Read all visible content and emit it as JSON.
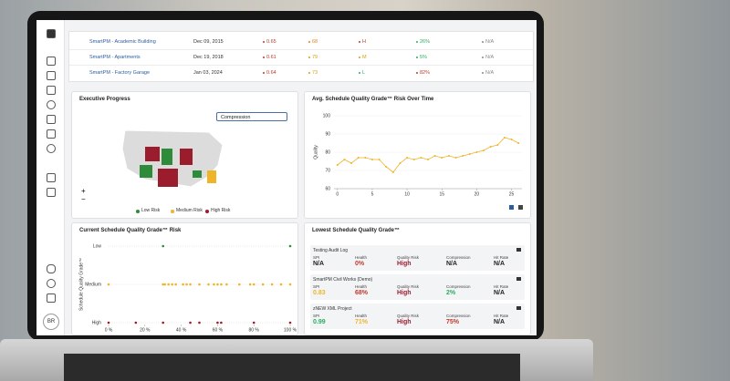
{
  "project_table": {
    "rows": [
      {
        "cells": [
          "SmartPM - Academic Building",
          "Dec 09, 2015",
          "0.65",
          "68",
          "H",
          "26%",
          "N/A"
        ],
        "colors": [
          "#2a5d9f",
          "#333333",
          "#c0392b",
          "#e67e22",
          "#c0392b",
          "#27ae60",
          "#888888"
        ]
      },
      {
        "cells": [
          "SmartPM - Apartments",
          "Dec 19, 2018",
          "0.61",
          "79",
          "M",
          "5%",
          "N/A"
        ],
        "colors": [
          "#2a5d9f",
          "#333333",
          "#c0392b",
          "#d4a017",
          "#d4a017",
          "#27ae60",
          "#888888"
        ]
      },
      {
        "cells": [
          "SmartPM - Factory Garage",
          "Jan 03, 2024",
          "0.64",
          "73",
          "L",
          "82%",
          "N/A"
        ],
        "colors": [
          "#2a5d9f",
          "#333333",
          "#c0392b",
          "#d4a017",
          "#27ae60",
          "#c0392b",
          "#888888"
        ]
      }
    ]
  },
  "executive_progress": {
    "title": "Executive Progress",
    "dropdown": "Compression",
    "zoom": [
      "+",
      "−"
    ],
    "legend": [
      {
        "name": "Low Risk",
        "color": "#2e8b3a"
      },
      {
        "name": "Medium Risk",
        "color": "#f0b429"
      },
      {
        "name": "High Risk",
        "color": "#9b1c2c"
      }
    ]
  },
  "risk_over_time": {
    "title": "Avg. Schedule Quality Grade™ Risk Over Time",
    "y_label": "Quality",
    "x": [
      0,
      1,
      2,
      3,
      4,
      5,
      6,
      7,
      8,
      9,
      10,
      11,
      12,
      13,
      14,
      15,
      16,
      17,
      18,
      19,
      20,
      21,
      22,
      23,
      24,
      25,
      26
    ],
    "values": [
      73,
      76,
      74,
      77,
      77,
      76,
      76,
      72,
      69,
      74,
      77,
      76,
      77,
      76,
      78,
      77,
      78,
      77,
      78,
      79,
      80,
      81,
      83,
      84,
      88,
      87,
      85
    ],
    "color": "#f0b429",
    "xlim": [
      -0.5,
      26.5
    ],
    "xticks": [
      0,
      5,
      10,
      15,
      20,
      25
    ],
    "ylim": [
      60,
      100
    ],
    "yticks": [
      60,
      70,
      80,
      90,
      100
    ]
  },
  "current_risk": {
    "title": "Current Schedule Quality Grade™ Risk",
    "y_label": "Schedule Quality Grade™",
    "categories": [
      "Low",
      "Medium",
      "High"
    ],
    "groups": [
      {
        "values": [
          30,
          100
        ],
        "color": "#2e8b3a"
      },
      {
        "values": [
          0,
          30,
          31,
          33,
          35,
          37,
          41,
          43,
          45,
          50,
          55,
          58,
          60,
          62,
          65,
          72,
          78,
          80,
          85,
          90,
          95,
          100
        ],
        "color": "#f0b429"
      },
      {
        "values": [
          0,
          15,
          30,
          45,
          50,
          60,
          62,
          80,
          100
        ],
        "color": "#9b1c2c"
      }
    ],
    "xlim": [
      0,
      100
    ],
    "xticks": [
      {
        "value": 0,
        "label": "0 %"
      },
      {
        "value": 20,
        "label": "20 %"
      },
      {
        "value": 40,
        "label": "40 %"
      },
      {
        "value": 60,
        "label": "60 %"
      },
      {
        "value": 80,
        "label": "80 %"
      },
      {
        "value": 100,
        "label": "100 %"
      }
    ]
  },
  "lowest_grade": {
    "title": "Lowest Schedule Quality Grade™",
    "cards": [
      {
        "name": "Testing Audit Log",
        "fields": [
          {
            "label": "SPI",
            "value": "N/A",
            "color": "#222222"
          },
          {
            "label": "Health",
            "value": "0%",
            "color": "#c0392b"
          },
          {
            "label": "Quality Risk",
            "value": "High",
            "color": "#9b1c2c"
          },
          {
            "label": "Compression",
            "value": "N/A",
            "color": "#222222"
          },
          {
            "label": "Hit Rate",
            "value": "N/A",
            "color": "#222222"
          }
        ]
      },
      {
        "name": "SmartPM Civil Works (Demo)",
        "fields": [
          {
            "label": "SPI",
            "value": "0.83",
            "color": "#f0b429"
          },
          {
            "label": "Health",
            "value": "68%",
            "color": "#c0392b"
          },
          {
            "label": "Quality Risk",
            "value": "High",
            "color": "#9b1c2c"
          },
          {
            "label": "Compression",
            "value": "2%",
            "color": "#27ae60"
          },
          {
            "label": "Hit Rate",
            "value": "N/A",
            "color": "#222222"
          }
        ]
      },
      {
        "name": "zNEW XML Project",
        "fields": [
          {
            "label": "SPI",
            "value": "0.99",
            "color": "#27ae60"
          },
          {
            "label": "Health",
            "value": "71%",
            "color": "#f0b429"
          },
          {
            "label": "Quality Risk",
            "value": "High",
            "color": "#9b1c2c"
          },
          {
            "label": "Compression",
            "value": "75%",
            "color": "#c0392b"
          },
          {
            "label": "Hit Rate",
            "value": "N/A",
            "color": "#222222"
          }
        ]
      }
    ]
  },
  "sidebar": {
    "user_initials": "BR"
  }
}
